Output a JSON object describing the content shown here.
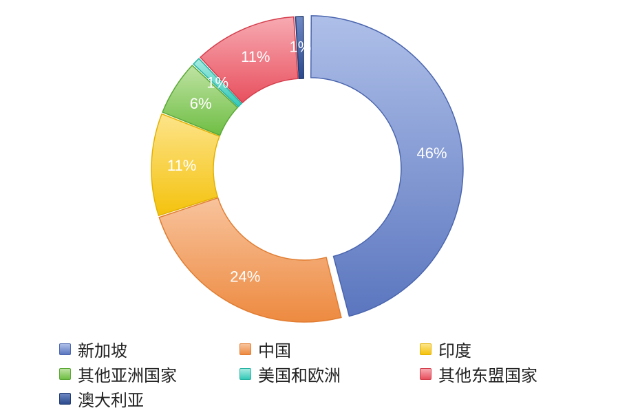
{
  "chart_data": {
    "type": "pie",
    "donut": true,
    "title": "",
    "legend_position": "bottom",
    "start_angle_deg": 0,
    "direction": "clockwise",
    "exploded_slice": "新加坡",
    "slices": [
      {
        "label": "新加坡",
        "value": 46,
        "value_label": "46%",
        "color": "#5b76bf",
        "color_light": "#aebfe8",
        "border": "#4a65ae"
      },
      {
        "label": "中国",
        "value": 24,
        "value_label": "24%",
        "color": "#ed8a40",
        "color_light": "#f8c39c",
        "border": "#e07c30"
      },
      {
        "label": "印度",
        "value": 11,
        "value_label": "11%",
        "color": "#f4c20d",
        "color_light": "#fde48a",
        "border": "#e3b100"
      },
      {
        "label": "其他亚洲国家",
        "value": 6,
        "value_label": "6%",
        "color": "#6fbe44",
        "color_light": "#bfe3a3",
        "border": "#5aa835"
      },
      {
        "label": "美国和欧洲",
        "value": 1,
        "value_label": "1%",
        "color": "#35c9b7",
        "color_light": "#a7ebe2",
        "border": "#26b3a2"
      },
      {
        "label": "其他东盟国家",
        "value": 11,
        "value_label": "11%",
        "color": "#e8505e",
        "color_light": "#f7aab2",
        "border": "#d43e4c"
      },
      {
        "label": "澳大利亚",
        "value": 1,
        "value_label": "1%",
        "color": "#2b4a8c",
        "color_light": "#6f89c4",
        "border": "#1f3a70"
      }
    ]
  }
}
